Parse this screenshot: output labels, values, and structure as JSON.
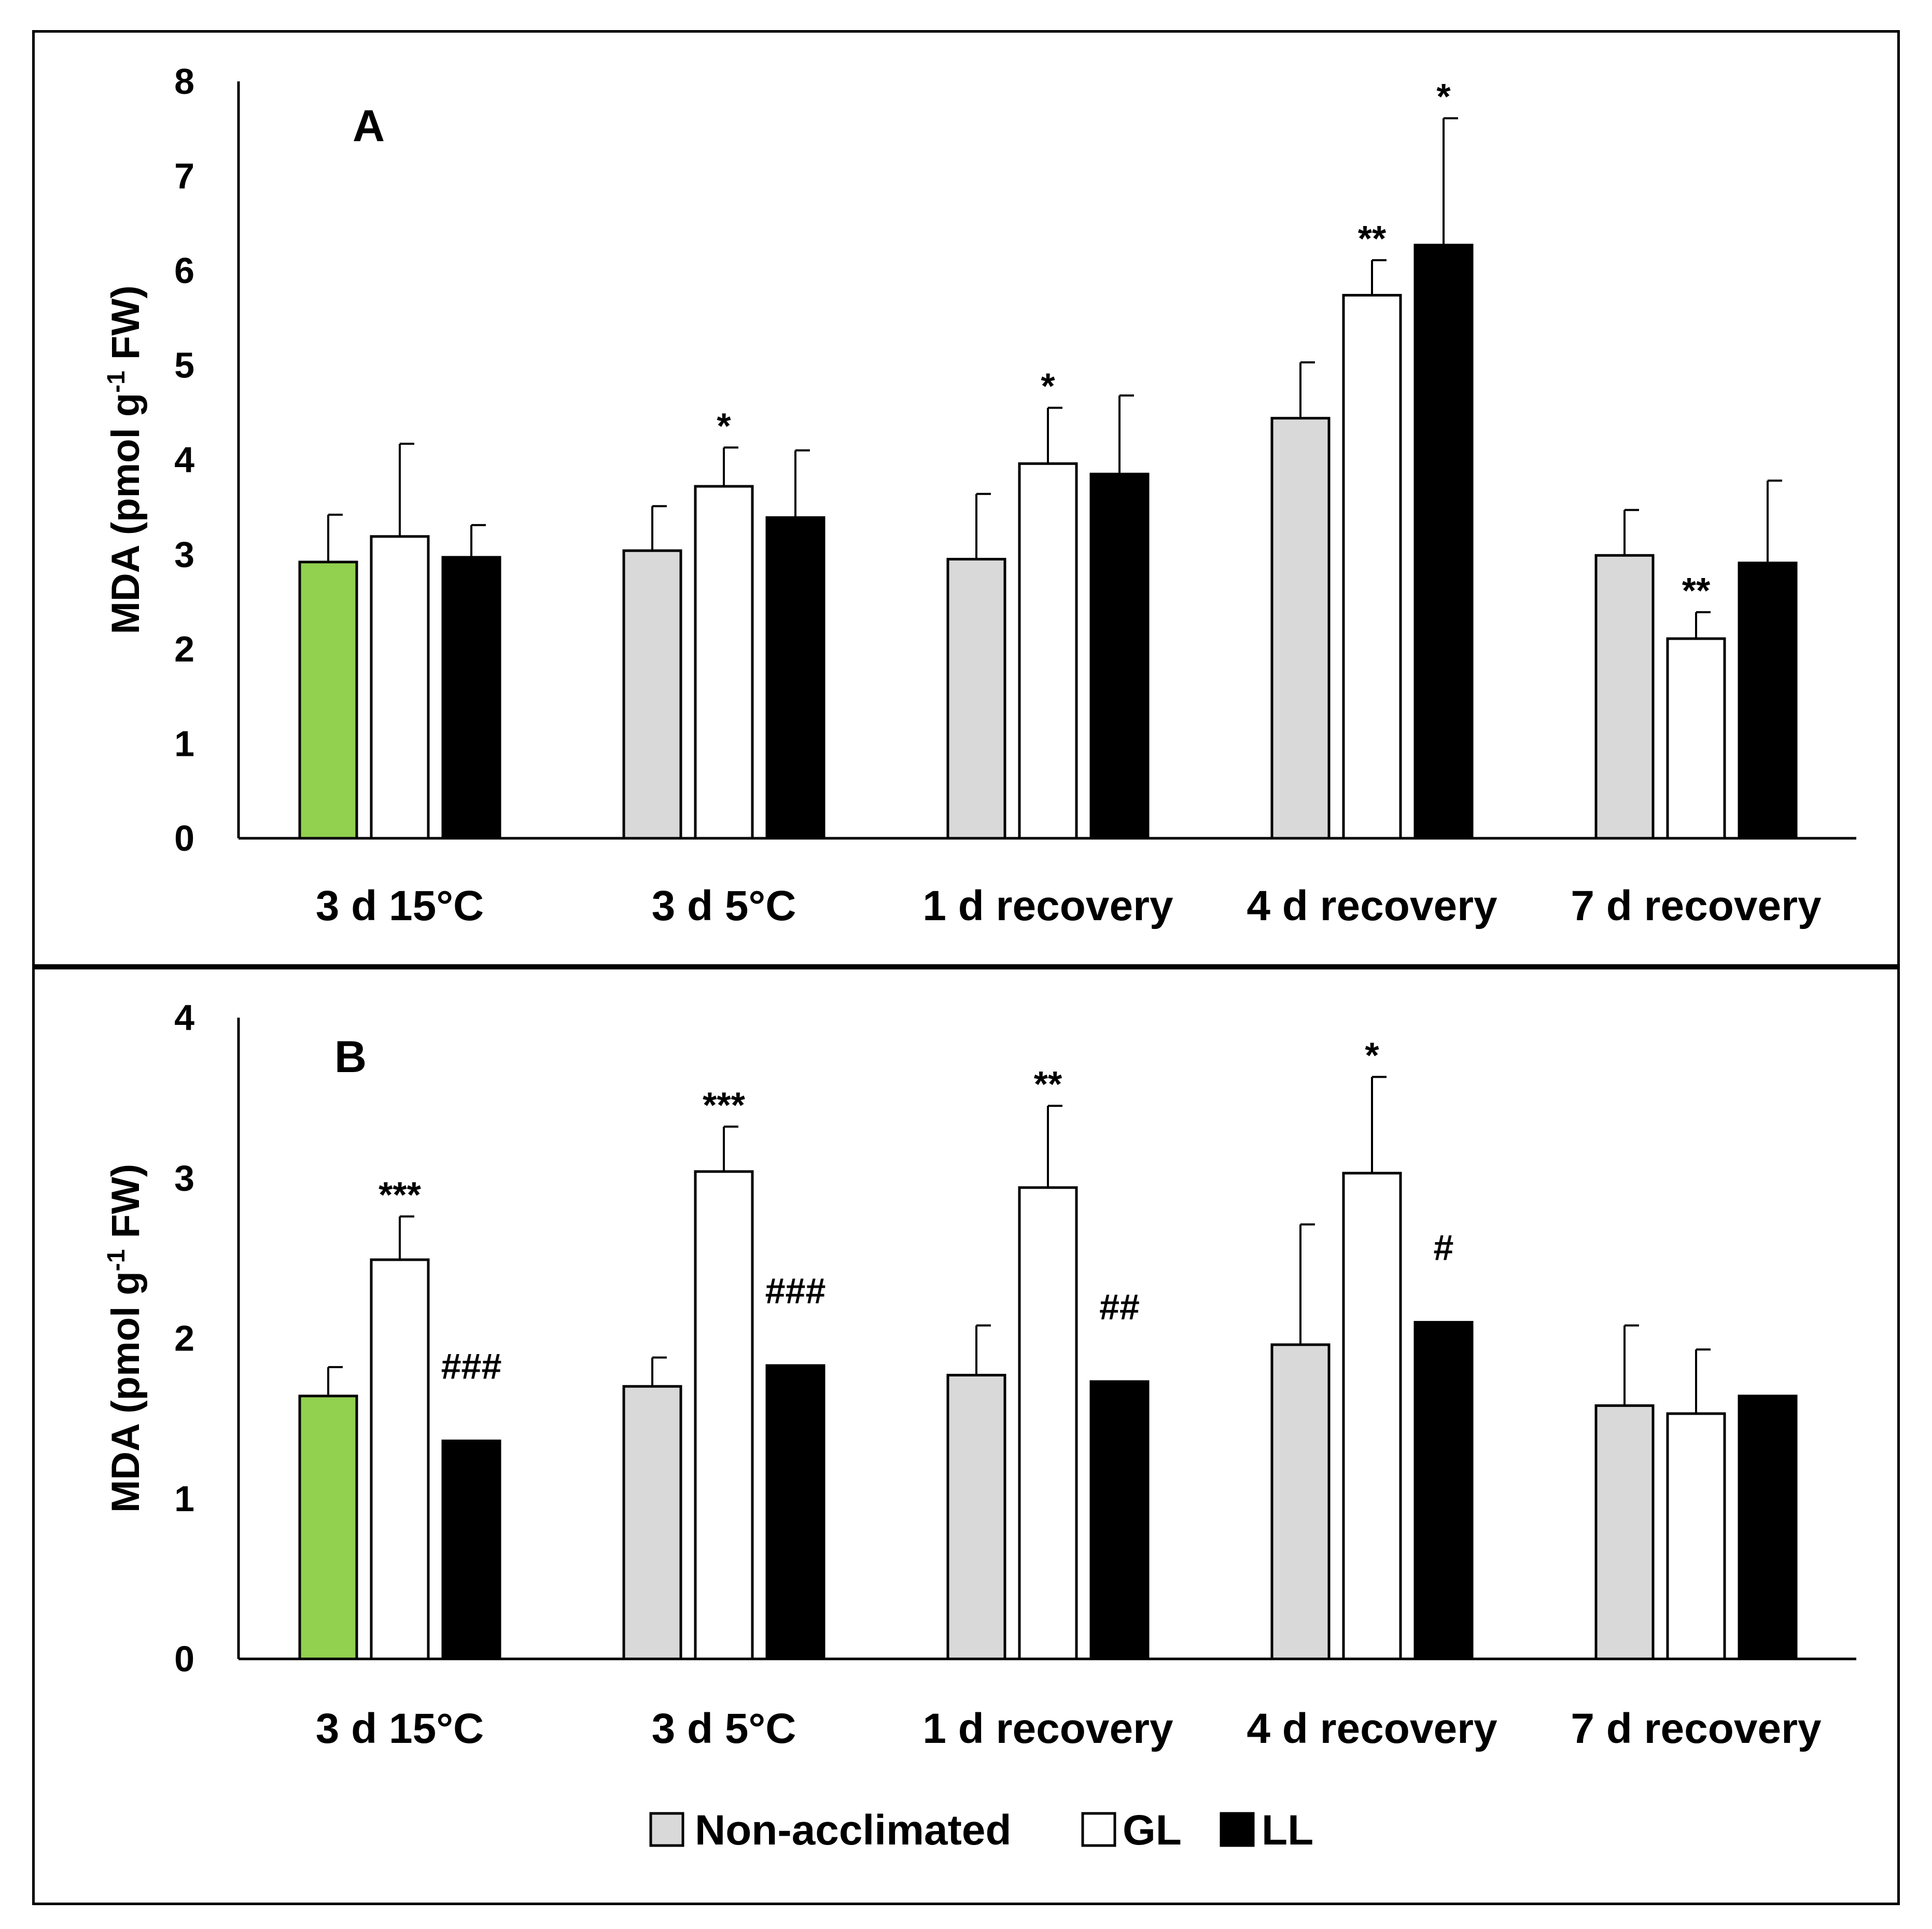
{
  "colors": {
    "non_acclimated": "#d9d9d9",
    "non_acclimated_first": "#92d050",
    "GL": "#ffffff",
    "LL": "#000000",
    "outline": "#000000"
  },
  "legend": {
    "items": [
      {
        "label": "Non-acclimated",
        "color": "#d9d9d9"
      },
      {
        "label": "GL",
        "color": "#ffffff"
      },
      {
        "label": "LL",
        "color": "#000000"
      }
    ]
  },
  "chart_data": [
    {
      "type": "bar",
      "panel": "A",
      "ylabel": "MDA (pmol g",
      "ylabel_sup": "-1",
      "ylabel_tail": " FW)",
      "ylim": [
        0,
        8
      ],
      "yticks": [
        0,
        1,
        2,
        3,
        4,
        5,
        6,
        7,
        8
      ],
      "categories": [
        "3 d 15°C",
        "3 d 5°C",
        "1 d recovery",
        "4 d recovery",
        "7 d recovery"
      ],
      "series": [
        {
          "name": "Non-acclimated",
          "values": [
            2.92,
            3.04,
            2.95,
            4.44,
            2.99
          ],
          "errors": [
            0.5,
            0.47,
            0.69,
            0.59,
            0.48
          ]
        },
        {
          "name": "GL",
          "values": [
            3.19,
            3.72,
            3.96,
            5.74,
            2.11
          ],
          "errors": [
            0.98,
            0.41,
            0.59,
            0.37,
            0.28
          ]
        },
        {
          "name": "LL",
          "values": [
            2.97,
            3.39,
            3.85,
            6.27,
            2.91
          ],
          "errors": [
            0.34,
            0.71,
            0.83,
            1.34,
            0.87
          ]
        }
      ],
      "annotations": [
        {
          "category": 1,
          "series": 1,
          "text": "*"
        },
        {
          "category": 2,
          "series": 1,
          "text": "*"
        },
        {
          "category": 3,
          "series": 1,
          "text": "**"
        },
        {
          "category": 3,
          "series": 2,
          "text": "*"
        },
        {
          "category": 4,
          "series": 1,
          "text": "**"
        }
      ]
    },
    {
      "type": "bar",
      "panel": "B",
      "ylabel": "MDA (pmol g",
      "ylabel_sup": "-1",
      "ylabel_tail": " FW)",
      "ylim": [
        0,
        4
      ],
      "yticks": [
        0,
        1,
        2,
        3,
        4
      ],
      "categories": [
        "3 d 15°C",
        "3 d 5°C",
        "1 d recovery",
        "4 d recovery",
        "7 d recovery"
      ],
      "series": [
        {
          "name": "Non-acclimated",
          "values": [
            1.64,
            1.7,
            1.77,
            1.96,
            1.58
          ],
          "errors": [
            0.18,
            0.18,
            0.31,
            0.75,
            0.5
          ]
        },
        {
          "name": "GL",
          "values": [
            2.49,
            3.04,
            2.94,
            3.03,
            1.53
          ],
          "errors": [
            0.27,
            0.28,
            0.51,
            0.6,
            0.4
          ]
        },
        {
          "name": "LL",
          "values": [
            1.36,
            1.83,
            1.73,
            2.1,
            1.64
          ],
          "errors": [
            0,
            0,
            0,
            0,
            0
          ]
        }
      ],
      "annotations": [
        {
          "category": 0,
          "series": 1,
          "text": "***"
        },
        {
          "category": 0,
          "series": 2,
          "text": "###"
        },
        {
          "category": 1,
          "series": 1,
          "text": "***"
        },
        {
          "category": 1,
          "series": 2,
          "text": "###"
        },
        {
          "category": 2,
          "series": 1,
          "text": "**"
        },
        {
          "category": 2,
          "series": 2,
          "text": "##"
        },
        {
          "category": 3,
          "series": 1,
          "text": "*"
        },
        {
          "category": 3,
          "series": 2,
          "text": "#"
        }
      ]
    }
  ]
}
